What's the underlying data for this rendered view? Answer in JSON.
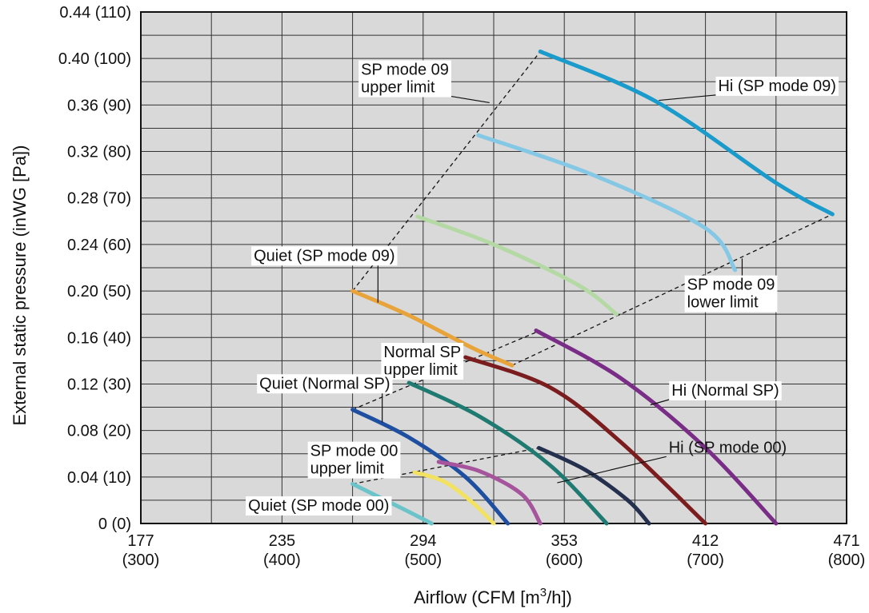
{
  "chart_data": {
    "type": "line",
    "xlabel": "Airflow (CFM [m",
    "xlabel_sup": "3",
    "xlabel_tail": "/h])",
    "ylabel": "External static pressure (inWG [Pa])",
    "xlim": [
      300,
      800
    ],
    "ylim": [
      0,
      0.44
    ],
    "grid": true,
    "x_ticks": [
      {
        "value": 300,
        "top": "177",
        "bottom": "(300)"
      },
      {
        "value": 400,
        "top": "235",
        "bottom": "(400)"
      },
      {
        "value": 500,
        "top": "294",
        "bottom": "(500)"
      },
      {
        "value": 600,
        "top": "353",
        "bottom": "(600)"
      },
      {
        "value": 700,
        "top": "412",
        "bottom": "(700)"
      },
      {
        "value": 800,
        "top": "471",
        "bottom": "(800)"
      }
    ],
    "y_ticks": [
      {
        "value": 0,
        "label": "0 (0)"
      },
      {
        "value": 0.04,
        "label": "0.04 (10)"
      },
      {
        "value": 0.08,
        "label": "0.08 (20)"
      },
      {
        "value": 0.12,
        "label": "0.12 (30)"
      },
      {
        "value": 0.16,
        "label": "0.16 (40)"
      },
      {
        "value": 0.2,
        "label": "0.20 (50)"
      },
      {
        "value": 0.24,
        "label": "0.24 (60)"
      },
      {
        "value": 0.28,
        "label": "0.28 (70)"
      },
      {
        "value": 0.32,
        "label": "0.32 (80)"
      },
      {
        "value": 0.36,
        "label": "0.36 (90)"
      },
      {
        "value": 0.4,
        "label": "0.40 (100)"
      },
      {
        "value": 0.44,
        "label": "0.44 (110)"
      }
    ],
    "series": [
      {
        "color": "#1a9bcb",
        "points": [
          [
            583,
            0.406
          ],
          [
            665,
            0.363
          ],
          [
            750,
            0.293
          ],
          [
            790,
            0.266
          ]
        ]
      },
      {
        "color": "#84c8e6",
        "points": [
          [
            539,
            0.334
          ],
          [
            620,
            0.3
          ],
          [
            700,
            0.254
          ],
          [
            721,
            0.218
          ]
        ]
      },
      {
        "color": "#b4d9a4",
        "points": [
          [
            496,
            0.264
          ],
          [
            550,
            0.24
          ],
          [
            610,
            0.205
          ],
          [
            637,
            0.18
          ]
        ]
      },
      {
        "color": "#e8a33a",
        "points": [
          [
            450,
            0.2
          ],
          [
            490,
            0.179
          ],
          [
            535,
            0.151
          ],
          [
            563,
            0.136
          ]
        ]
      },
      {
        "color": "#7b1c1f",
        "points": [
          [
            530,
            0.143
          ],
          [
            590,
            0.117
          ],
          [
            640,
            0.07
          ],
          [
            700,
            0.0
          ]
        ]
      },
      {
        "color": "#7a2d87",
        "points": [
          [
            580,
            0.166
          ],
          [
            640,
            0.125
          ],
          [
            700,
            0.065
          ],
          [
            750,
            0.0
          ]
        ]
      },
      {
        "color": "#1f7a72",
        "points": [
          [
            490,
            0.121
          ],
          [
            540,
            0.092
          ],
          [
            590,
            0.05
          ],
          [
            630,
            0.0
          ]
        ]
      },
      {
        "color": "#1f4fa0",
        "points": [
          [
            450,
            0.098
          ],
          [
            490,
            0.074
          ],
          [
            530,
            0.04
          ],
          [
            560,
            0.0
          ]
        ]
      },
      {
        "color": "#25304f",
        "points": [
          [
            582,
            0.065
          ],
          [
            615,
            0.046
          ],
          [
            645,
            0.02
          ],
          [
            660,
            0.0
          ]
        ]
      },
      {
        "color": "#a6559c",
        "points": [
          [
            511,
            0.053
          ],
          [
            540,
            0.045
          ],
          [
            570,
            0.025
          ],
          [
            583,
            0.0
          ]
        ]
      },
      {
        "color": "#f2e25f",
        "points": [
          [
            494,
            0.044
          ],
          [
            515,
            0.036
          ],
          [
            535,
            0.018
          ],
          [
            550,
            0.0
          ]
        ]
      },
      {
        "color": "#6cc4cb",
        "points": [
          [
            450,
            0.034
          ],
          [
            470,
            0.022
          ],
          [
            490,
            0.01
          ],
          [
            506,
            0.0
          ]
        ]
      }
    ],
    "limit_lines": [
      {
        "points": [
          [
            450,
            0.2
          ],
          [
            583,
            0.406
          ]
        ]
      },
      {
        "points": [
          [
            450,
            0.098
          ],
          [
            583,
            0.166
          ]
        ]
      },
      {
        "points": [
          [
            450,
            0.034
          ],
          [
            582,
            0.065
          ]
        ]
      },
      {
        "points": [
          [
            563,
            0.136
          ],
          [
            790,
            0.266
          ]
        ]
      }
    ],
    "annotations": [
      {
        "text_lines": [
          "SP mode 09",
          "upper limit"
        ],
        "boxed": true,
        "ax": 456,
        "ay": 0.386,
        "tx": 547,
        "ty": 0.362
      },
      {
        "text_lines": [
          "Hi (SP mode 09)"
        ],
        "boxed": true,
        "ax": 709,
        "ay": 0.372,
        "tx": 667,
        "ty": 0.364
      },
      {
        "text_lines": [
          "SP mode 09",
          "lower limit"
        ],
        "boxed": true,
        "ax": 687,
        "ay": 0.201,
        "tx": 726,
        "ty": 0.228
      },
      {
        "text_lines": [
          "Quiet (SP mode 09)"
        ],
        "boxed": true,
        "ax": 380,
        "ay": 0.226,
        "tx": 468,
        "ty": 0.19
      },
      {
        "text_lines": [
          "Normal SP",
          "upper limit"
        ],
        "boxed": true,
        "ax": 472,
        "ay": 0.143,
        "tx": 514,
        "ty": 0.134
      },
      {
        "text_lines": [
          "Hi (Normal SP)"
        ],
        "boxed": true,
        "ax": 676,
        "ay": 0.11,
        "tx": 661,
        "ty": 0.102
      },
      {
        "text_lines": [
          "Quiet (Normal SP)"
        ],
        "boxed": true,
        "ax": 384,
        "ay": 0.116,
        "tx": 471,
        "ty": 0.087
      },
      {
        "text_lines": [
          "SP mode 00",
          "upper limit"
        ],
        "boxed": true,
        "ax": 420,
        "ay": 0.058,
        "tx": 475,
        "ty": 0.043
      },
      {
        "text_lines": [
          "Hi (SP mode 00)"
        ],
        "boxed": false,
        "ax": 674,
        "ay": 0.061,
        "tx": 595,
        "ty": 0.035
      },
      {
        "text_lines": [
          "Quiet (SP mode 00)"
        ],
        "boxed": true,
        "ax": 376,
        "ay": 0.011,
        "tx": 450,
        "ty": 0.017
      }
    ]
  }
}
